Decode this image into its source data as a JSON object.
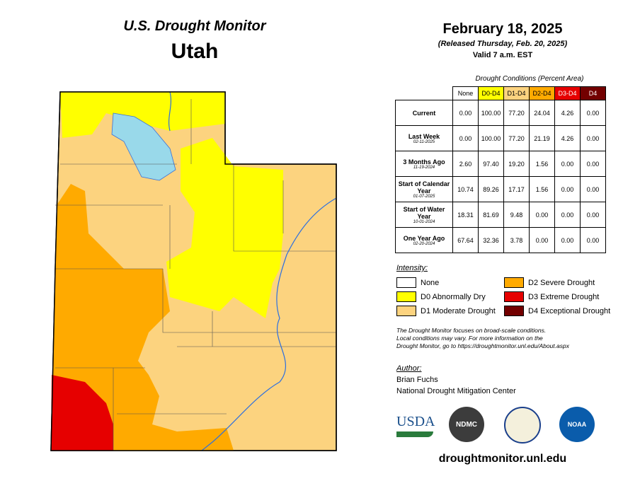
{
  "header": {
    "title": "U.S. Drought Monitor",
    "state": "Utah",
    "date": "February 18, 2025",
    "released": "(Released Thursday, Feb. 20, 2025)",
    "valid": "Valid 7 a.m. EST"
  },
  "table": {
    "caption": "Drought Conditions (Percent Area)",
    "columns": [
      {
        "label": "None",
        "color": "#ffffff",
        "text": "#000000"
      },
      {
        "label": "D0-D4",
        "color": "#ffff00",
        "text": "#000000"
      },
      {
        "label": "D1-D4",
        "color": "#fcd37f",
        "text": "#000000"
      },
      {
        "label": "D2-D4",
        "color": "#ffaa00",
        "text": "#000000"
      },
      {
        "label": "D3-D4",
        "color": "#e60000",
        "text": "#ffffff"
      },
      {
        "label": "D4",
        "color": "#730000",
        "text": "#ffffff"
      }
    ],
    "rows": [
      {
        "label": "Current",
        "date": null,
        "values": [
          "0.00",
          "100.00",
          "77.20",
          "24.04",
          "4.26",
          "0.00"
        ]
      },
      {
        "label": "Last Week",
        "date": "02-11-2025",
        "values": [
          "0.00",
          "100.00",
          "77.20",
          "21.19",
          "4.26",
          "0.00"
        ]
      },
      {
        "label": "3 Months Ago",
        "date": "11-19-2024",
        "values": [
          "2.60",
          "97.40",
          "19.20",
          "1.56",
          "0.00",
          "0.00"
        ]
      },
      {
        "label": "Start of Calendar Year",
        "date": "01-07-2025",
        "values": [
          "10.74",
          "89.26",
          "17.17",
          "1.56",
          "0.00",
          "0.00"
        ]
      },
      {
        "label": "Start of Water Year",
        "date": "10-01-2024",
        "values": [
          "18.31",
          "81.69",
          "9.48",
          "0.00",
          "0.00",
          "0.00"
        ]
      },
      {
        "label": "One Year Ago",
        "date": "02-20-2024",
        "values": [
          "67.64",
          "32.36",
          "3.78",
          "0.00",
          "0.00",
          "0.00"
        ]
      }
    ]
  },
  "legend": {
    "title": "Intensity:",
    "items": [
      {
        "label": "None",
        "color": "#ffffff"
      },
      {
        "label": "D0 Abnormally Dry",
        "color": "#ffff00"
      },
      {
        "label": "D1 Moderate Drought",
        "color": "#fcd37f"
      },
      {
        "label": "D2 Severe Drought",
        "color": "#ffaa00"
      },
      {
        "label": "D3 Extreme Drought",
        "color": "#e60000"
      },
      {
        "label": "D4 Exceptional Drought",
        "color": "#730000"
      }
    ]
  },
  "note": [
    "The Drought Monitor focuses on broad-scale conditions.",
    "Local conditions may vary. For more information on the",
    "Drought Monitor, go to https://droughtmonitor.unl.edu/About.aspx"
  ],
  "author": {
    "title": "Author:",
    "name": "Brian Fuchs",
    "org": "National Drought Mitigation Center"
  },
  "logos": [
    "USDA",
    "NDMC",
    "NOAA"
  ],
  "url": "droughtmonitor.unl.edu"
}
